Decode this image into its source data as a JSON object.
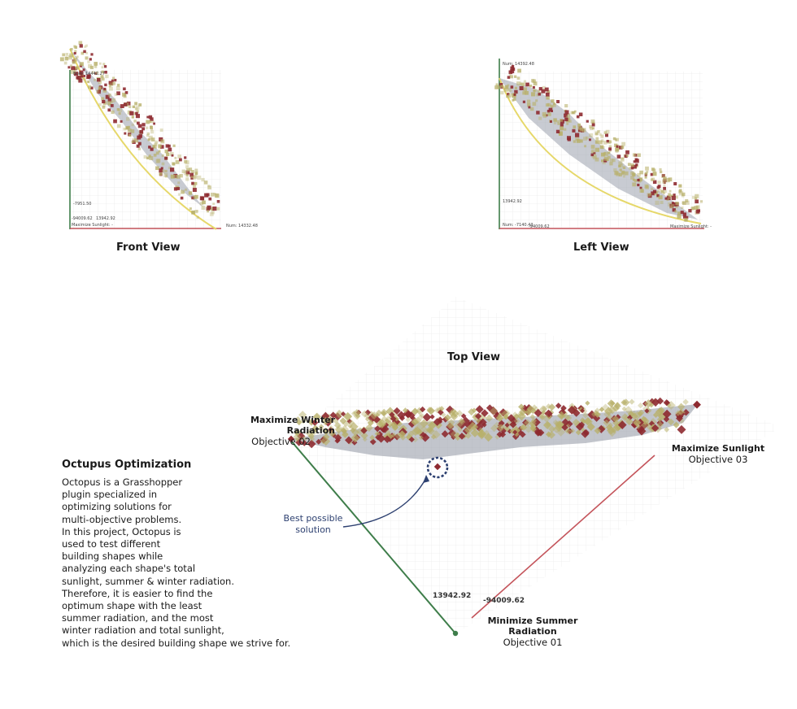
{
  "front_view": {
    "caption": "Front View",
    "labels": {
      "num_y": "Num: 14442.27",
      "num_x": "Num: 14332.48",
      "value_a": "-7951.50",
      "value_b": "-94009.62",
      "value_c": "13942.92",
      "axis": "Maximize Sunlight: -"
    }
  },
  "left_view": {
    "caption": "Left View",
    "labels": {
      "num_y": "Num: 14392.48",
      "value_a": "13942.92",
      "value_b": "Num: -7140.43",
      "value_c": "-94009.62",
      "axis": "Maximize Sunlight: -"
    }
  },
  "top_view": {
    "caption": "Top View",
    "objectives": {
      "winter": {
        "title": "Maximize Winter Radiation",
        "sub": "Objective 02"
      },
      "sunlight": {
        "title": "Maximize Sunlight",
        "sub": "Objective 03"
      },
      "summer": {
        "title": "Minimize Summer Radiation",
        "sub": "Objective 01"
      }
    },
    "axis_value_green": "13942.92",
    "axis_value_red": "-94009.62",
    "annotation": "Best possible\nsolution"
  },
  "description": {
    "title": "Octupus Optimization",
    "body": "Octopus is a Grasshopper\nplugin specialized in\noptimizing solutions for\nmulti-objective problems.\nIn this project, Octopus is\nused to test different\nbuilding shapes while\nanalyzing each shape's total\nsunlight, summer & winter radiation.\nTherefore, it is easier to find the\noptimum shape with the least\nsummer radiation, and the most\nwinter radiation and total sunlight,\nwhich is the desired building shape we strive for."
  },
  "colors": {
    "green_axis": "#3e7d4a",
    "red_axis": "#c4545b",
    "yellow_curve": "#e6d86a",
    "dark_red_point": "#8e2a30",
    "olive_point": "#b8b06a",
    "annotation_blue": "#2d4070"
  }
}
